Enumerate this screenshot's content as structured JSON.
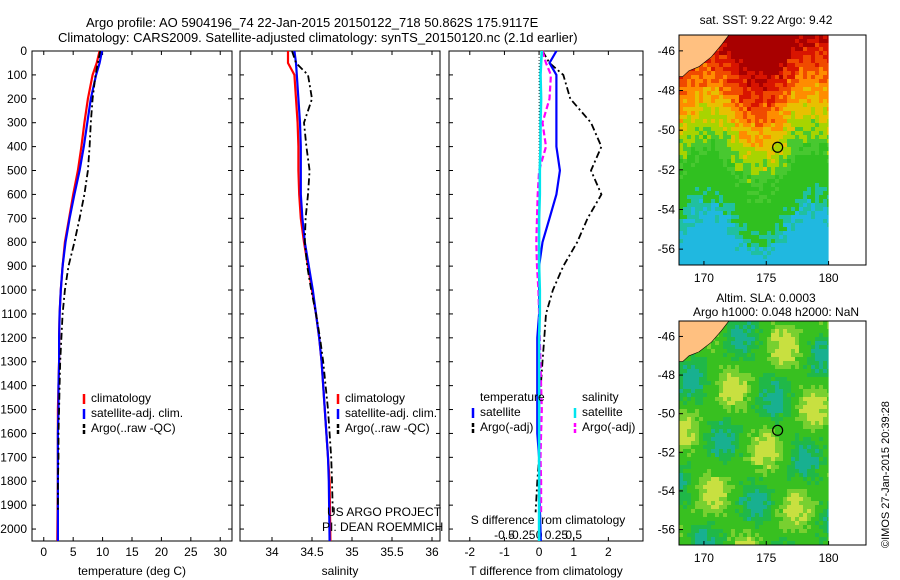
{
  "header": {
    "line1": "Argo profile: AO 5904196_74 22-Jan-2015 20150122_718 50.862S 175.9117E",
    "line2": "Climatology: CARS2009. Satellite-adjusted climatology: synTS_20150120.nc (2.1d earlier)"
  },
  "colors": {
    "climatology": "#ff0000",
    "satellite": "#0000ff",
    "argo": "#000000",
    "sal_satellite": "#00e5ee",
    "sal_argo": "#ff00ff",
    "land": "#ffc080"
  },
  "credit": "©IMOS 27-Jan-2015 20:39:28",
  "chart_data": [
    {
      "id": "temperature",
      "type": "line",
      "xlabel": "temperature (deg C)",
      "xlim": [
        -2,
        32
      ],
      "ylim": [
        0,
        2050
      ],
      "xticks": [
        "0",
        "5",
        "10",
        "15",
        "20",
        "25",
        "30"
      ],
      "xtick_values": [
        0,
        5,
        10,
        15,
        20,
        25,
        30
      ],
      "yticks": [
        "0",
        "100",
        "200",
        "300",
        "400",
        "500",
        "600",
        "700",
        "800",
        "900",
        "1000",
        "1100",
        "1200",
        "1300",
        "1400",
        "1500",
        "1600",
        "1700",
        "1800",
        "1900",
        "2000"
      ],
      "ytick_values": [
        0,
        100,
        200,
        300,
        400,
        500,
        600,
        700,
        800,
        900,
        1000,
        1100,
        1200,
        1300,
        1400,
        1500,
        1600,
        1700,
        1800,
        1900,
        2000
      ],
      "legend": [
        "climatology",
        "satellite-adj. clim.",
        "Argo(..raw -QC)"
      ],
      "series": [
        {
          "name": "climatology",
          "style": "solid",
          "x": [
            9.5,
            9.0,
            8.3,
            7.5,
            6.9,
            6.4,
            5.8,
            5.0,
            4.3,
            3.6,
            3.2,
            2.9,
            2.7,
            2.6,
            2.6,
            2.5,
            2.4,
            2.4,
            2.4,
            2.4,
            2.3
          ],
          "y": [
            0,
            50,
            100,
            200,
            300,
            400,
            500,
            600,
            700,
            800,
            900,
            1000,
            1100,
            1200,
            1300,
            1400,
            1500,
            1600,
            1700,
            1800,
            2050
          ]
        },
        {
          "name": "satellite-adj. clim.",
          "style": "solid",
          "x": [
            9.9,
            9.5,
            8.9,
            8.0,
            7.4,
            6.8,
            6.1,
            5.2,
            4.4,
            3.7,
            3.2,
            2.9,
            2.7,
            2.6,
            2.6,
            2.5,
            2.5,
            2.4,
            2.4,
            2.4,
            2.4
          ],
          "y": [
            0,
            50,
            100,
            200,
            300,
            400,
            500,
            600,
            700,
            800,
            900,
            1000,
            1100,
            1200,
            1300,
            1400,
            1500,
            1600,
            1700,
            1800,
            2050
          ]
        },
        {
          "name": "Argo(..raw -QC)",
          "style": "dashdot",
          "x": [
            9.6,
            9.2,
            8.8,
            8.3,
            8.0,
            7.8,
            7.5,
            6.9,
            6.1,
            5.2,
            4.2,
            3.6,
            3.2,
            3.0,
            2.8,
            2.7,
            2.6,
            2.5,
            2.5,
            2.4,
            2.4
          ],
          "y": [
            0,
            50,
            100,
            200,
            300,
            400,
            500,
            600,
            700,
            800,
            900,
            1000,
            1100,
            1200,
            1300,
            1400,
            1500,
            1600,
            1700,
            1800,
            1930
          ]
        }
      ]
    },
    {
      "id": "salinity",
      "type": "line",
      "xlabel": "salinity",
      "xlim": [
        33.6,
        36.1
      ],
      "ylim": [
        0,
        2050
      ],
      "xticks": [
        "34",
        "34.5",
        "35",
        "35.5",
        "36"
      ],
      "xtick_values": [
        34,
        34.5,
        35,
        35.5,
        36
      ],
      "legend": [
        "climatology",
        "satellite-adj. clim.",
        "Argo(..raw -QC)"
      ],
      "annotation": [
        "US ARGO PROJECT",
        "PI: DEAN ROEMMICH"
      ],
      "series": [
        {
          "name": "climatology",
          "style": "solid",
          "x": [
            34.2,
            34.2,
            34.28,
            34.3,
            34.32,
            34.33,
            34.33,
            34.34,
            34.36,
            34.4,
            34.45,
            34.5,
            34.55,
            34.59,
            34.62,
            34.64,
            34.66,
            34.68,
            34.7,
            34.72,
            34.73
          ],
          "y": [
            0,
            50,
            100,
            200,
            300,
            400,
            500,
            600,
            700,
            800,
            900,
            1000,
            1100,
            1200,
            1300,
            1400,
            1500,
            1600,
            1700,
            1800,
            2050
          ]
        },
        {
          "name": "satellite-adj. clim.",
          "style": "solid",
          "x": [
            34.28,
            34.3,
            34.31,
            34.33,
            34.35,
            34.36,
            34.36,
            34.36,
            34.38,
            34.41,
            34.46,
            34.51,
            34.55,
            34.59,
            34.62,
            34.64,
            34.66,
            34.68,
            34.7,
            34.71,
            34.72
          ],
          "y": [
            0,
            50,
            100,
            200,
            300,
            400,
            500,
            600,
            700,
            800,
            900,
            1000,
            1100,
            1200,
            1300,
            1400,
            1500,
            1600,
            1700,
            1800,
            2050
          ]
        },
        {
          "name": "Argo(..raw -QC)",
          "style": "dashdot",
          "x": [
            34.25,
            34.3,
            34.45,
            34.5,
            34.4,
            34.43,
            34.47,
            34.45,
            34.42,
            34.41,
            34.44,
            34.49,
            34.55,
            34.6,
            34.64,
            34.67,
            34.7,
            34.72,
            34.74,
            34.75,
            34.76
          ],
          "y": [
            0,
            50,
            100,
            200,
            300,
            400,
            500,
            600,
            700,
            800,
            900,
            1000,
            1100,
            1200,
            1300,
            1400,
            1500,
            1600,
            1700,
            1800,
            1930
          ]
        }
      ]
    },
    {
      "id": "difference",
      "type": "line",
      "xlabel": "T difference from climatology",
      "xlabel_top": "S difference from climatology",
      "xlim": [
        -2.6,
        3.0
      ],
      "ylim": [
        0,
        2050
      ],
      "xticks": [
        "-2",
        "-1",
        "0",
        "1",
        "2"
      ],
      "xtick_values": [
        -2,
        -1,
        0,
        1,
        2
      ],
      "sticks": [
        "-0.5",
        "-0.25",
        "0",
        "0.25",
        "0.5"
      ],
      "stick_values": [
        -0.5,
        -0.25,
        0,
        0.25,
        0.5
      ],
      "legend_temperature": [
        "temperature",
        "satellite",
        "Argo(-adj)"
      ],
      "legend_salinity": [
        "salinity",
        "satellite",
        "Argo(-adj)"
      ],
      "series": [
        {
          "name": "T satellite",
          "style": "solid",
          "x": [
            0.5,
            0.3,
            0.5,
            0.5,
            0.5,
            0.5,
            0.6,
            0.5,
            0.3,
            0.1,
            0.0,
            0.0,
            0.0,
            -0.05,
            -0.05,
            -0.05,
            -0.05,
            -0.05,
            0.0,
            0.0,
            0.05
          ],
          "y": [
            0,
            50,
            100,
            200,
            300,
            400,
            500,
            600,
            700,
            800,
            900,
            1000,
            1100,
            1200,
            1300,
            1400,
            1500,
            1600,
            1700,
            1800,
            2050
          ]
        },
        {
          "name": "T Argo(-adj)",
          "style": "dashdot",
          "x": [
            0.1,
            0.3,
            0.7,
            0.9,
            1.5,
            1.8,
            1.5,
            1.8,
            1.4,
            1.1,
            0.7,
            0.4,
            0.2,
            0.15,
            0.1,
            0.05,
            0.0,
            0.0,
            0.0,
            -0.05,
            -0.1
          ],
          "y": [
            0,
            50,
            100,
            200,
            300,
            400,
            500,
            600,
            700,
            800,
            900,
            1000,
            1100,
            1200,
            1300,
            1400,
            1500,
            1600,
            1700,
            1800,
            1930
          ]
        },
        {
          "name": "S satellite",
          "style": "solid",
          "x": [
            0.04,
            0.03,
            0.02,
            0.03,
            0.02,
            0.02,
            0.01,
            0.01,
            0.0,
            0.0,
            0.0,
            0.01,
            0.01,
            0.0,
            0.0,
            0.0,
            0.0,
            0.0,
            0.0,
            0.0,
            0.0
          ],
          "y": [
            0,
            50,
            100,
            200,
            300,
            400,
            500,
            600,
            700,
            800,
            900,
            1000,
            1100,
            1200,
            1300,
            1400,
            1500,
            1600,
            1700,
            1800,
            2050
          ]
        },
        {
          "name": "S Argo(-adj)",
          "style": "dashed",
          "x": [
            0.05,
            0.1,
            0.17,
            0.15,
            0.05,
            0.1,
            0.0,
            -0.02,
            -0.03,
            -0.04,
            -0.03,
            -0.01,
            0.0,
            0.01,
            0.02,
            0.03,
            0.04,
            0.03,
            0.02,
            0.03,
            0.03
          ],
          "y": [
            0,
            50,
            100,
            200,
            300,
            400,
            500,
            600,
            700,
            800,
            900,
            1000,
            1100,
            1200,
            1300,
            1400,
            1500,
            1600,
            1700,
            1800,
            1930
          ]
        }
      ]
    },
    {
      "id": "sst-map",
      "type": "heatmap",
      "title": "sat. SST: 9.22  Argo: 9.42",
      "xlim": [
        168,
        183
      ],
      "ylim": [
        -56.8,
        -45.2
      ],
      "xticks": [
        "170",
        "175",
        "180"
      ],
      "xtick_values": [
        170,
        175,
        180
      ],
      "yticks": [
        "-46",
        "-48",
        "-50",
        "-52",
        "-54",
        "-56"
      ],
      "ytick_values": [
        -46,
        -48,
        -50,
        -52,
        -54,
        -56
      ],
      "float_position": [
        175.9117,
        -50.862
      ]
    },
    {
      "id": "sla-map",
      "type": "heatmap",
      "title_lines": [
        "Altim. SLA: 0.0003",
        "Argo h1000: 0.048 h2000: NaN"
      ],
      "xlim": [
        168,
        183
      ],
      "ylim": [
        -56.8,
        -45.2
      ],
      "xticks": [
        "170",
        "175",
        "180"
      ],
      "xtick_values": [
        170,
        175,
        180
      ],
      "yticks": [
        "-46",
        "-48",
        "-50",
        "-52",
        "-54",
        "-56"
      ],
      "ytick_values": [
        -46,
        -48,
        -50,
        -52,
        -54,
        -56
      ],
      "float_position": [
        175.9117,
        -50.862
      ]
    }
  ]
}
